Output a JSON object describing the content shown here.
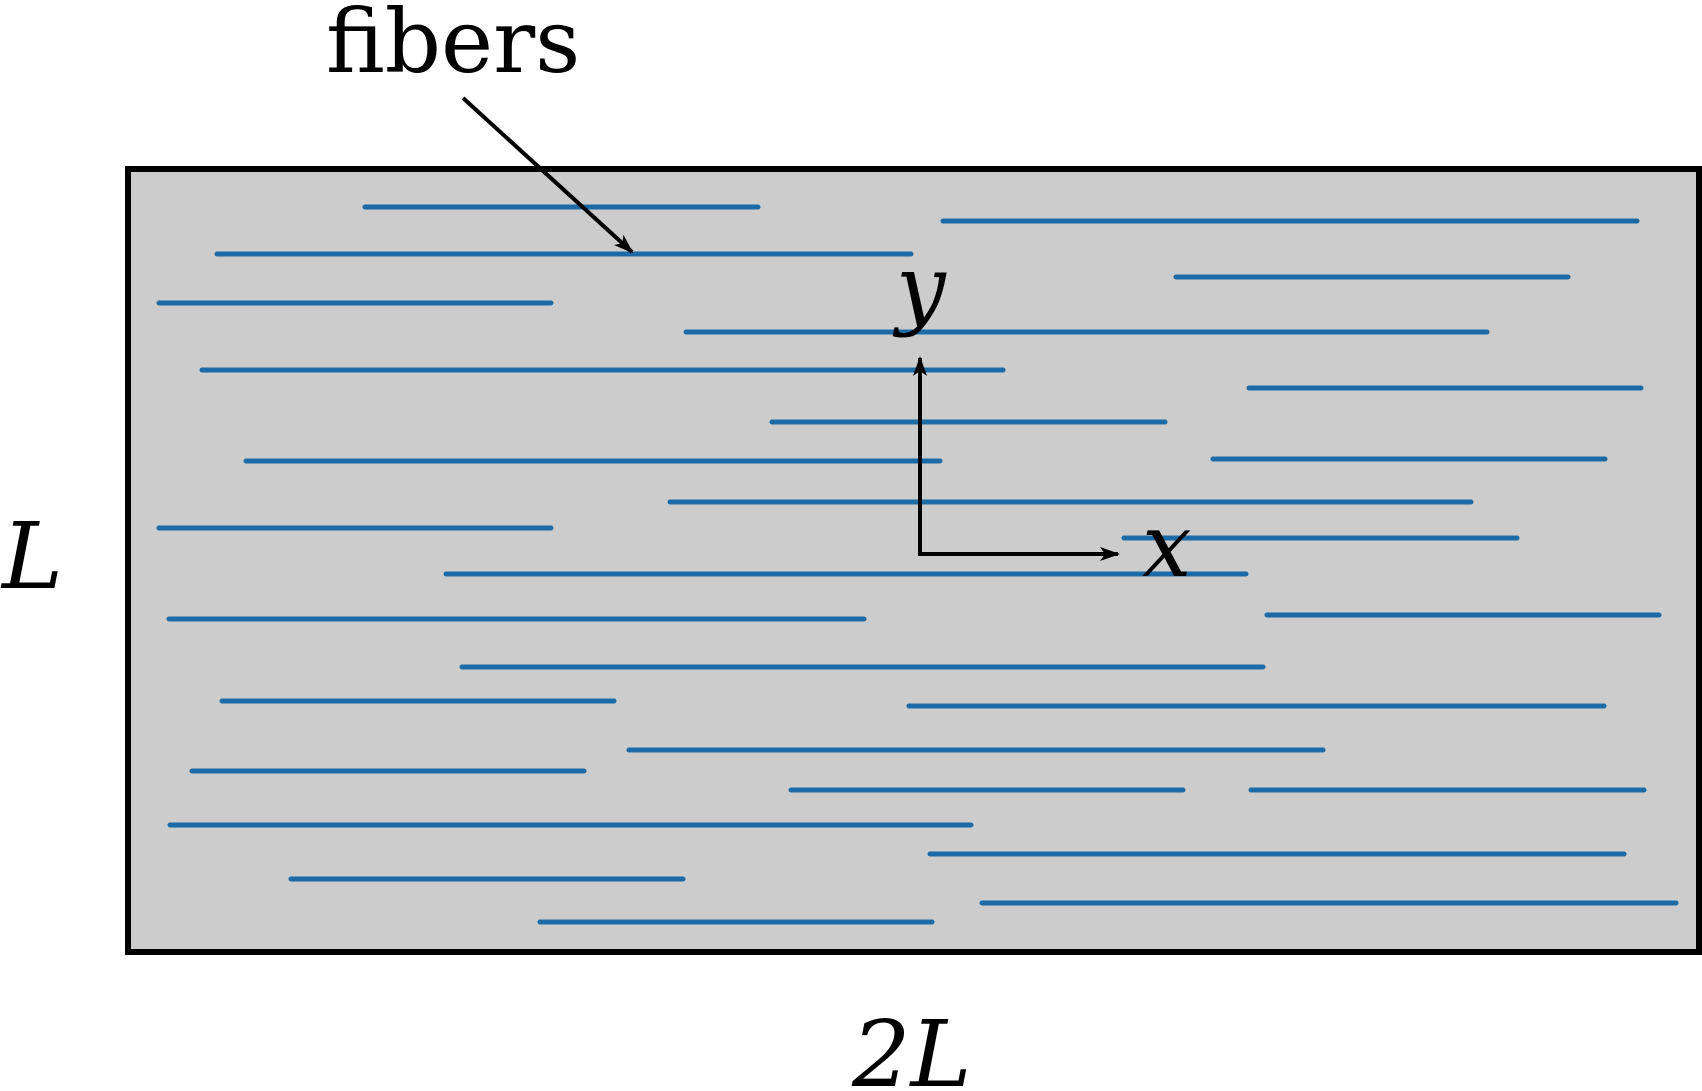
{
  "labels": {
    "fibers": "fibers",
    "height": "L",
    "width": "2L",
    "x_axis": "x",
    "y_axis": "y"
  },
  "colors": {
    "fiber": "#1c6aa6",
    "matrix_fill": "#cccccc",
    "outline": "#000000"
  }
}
